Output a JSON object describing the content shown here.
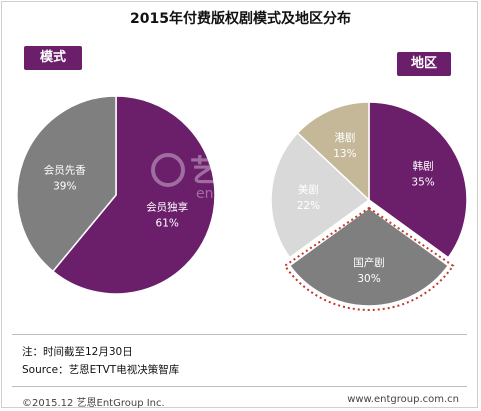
{
  "title": "2015年付费版权剧模式及地区分布",
  "watermark": {
    "brand": "艺恩",
    "sub": "entgroup"
  },
  "chart_data": [
    {
      "type": "pie",
      "tag": "模式",
      "slices": [
        {
          "label": "会员独享",
          "pct_label": "61%",
          "value": 61,
          "color": "#6b1f6b"
        },
        {
          "label": "会员先香",
          "pct_label": "39%",
          "value": 39,
          "color": "#7f7f7f"
        }
      ]
    },
    {
      "type": "pie",
      "tag": "地区",
      "slices": [
        {
          "label": "韩剧",
          "pct_label": "35%",
          "value": 35,
          "color": "#6b1f6b"
        },
        {
          "label": "国产剧",
          "pct_label": "30%",
          "value": 30,
          "color": "#7f7f7f",
          "highlighted": true
        },
        {
          "label": "美剧",
          "pct_label": "22%",
          "value": 22,
          "color": "#d9d9d9"
        },
        {
          "label": "港剧",
          "pct_label": "13%",
          "value": 13,
          "color": "#c4b898"
        }
      ]
    }
  ],
  "notes": {
    "note1": "注：时间截至12月30日",
    "note2": "Source：艺恩ETVT电视决策智库"
  },
  "footer": {
    "left": "©2015.12  艺恩EntGroup Inc.",
    "right": "www.entgroup.com.cn"
  }
}
